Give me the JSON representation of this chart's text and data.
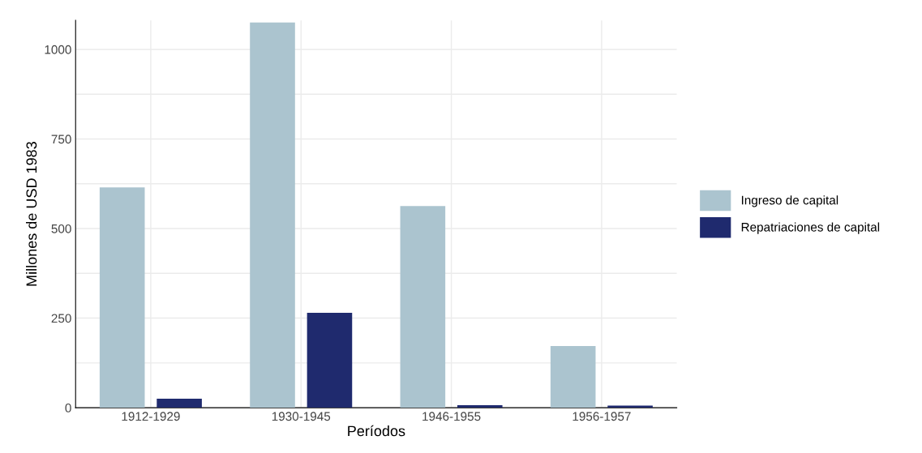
{
  "chart_data": {
    "type": "bar",
    "xlabel": "Períodos",
    "ylabel": "Millones de USD 1983",
    "categories": [
      "1912-1929",
      "1930-1945",
      "1946-1955",
      "1956-1957"
    ],
    "series": [
      {
        "name": "Ingreso de capital",
        "color": "#abc4cf",
        "values": [
          615,
          1075,
          563,
          172
        ]
      },
      {
        "name": "Repatriaciones de capital",
        "color": "#1f2a6e",
        "values": [
          25,
          265,
          7,
          6
        ]
      }
    ],
    "ylim": [
      0,
      1081
    ],
    "yticks": [
      0,
      {
        "value": 125,
        "label": null
      },
      250,
      {
        "value": 375,
        "label": null
      },
      500,
      {
        "value": 625,
        "label": null
      },
      750,
      {
        "value": 875,
        "label": null
      },
      1000
    ],
    "grid": true,
    "legend": "right"
  }
}
